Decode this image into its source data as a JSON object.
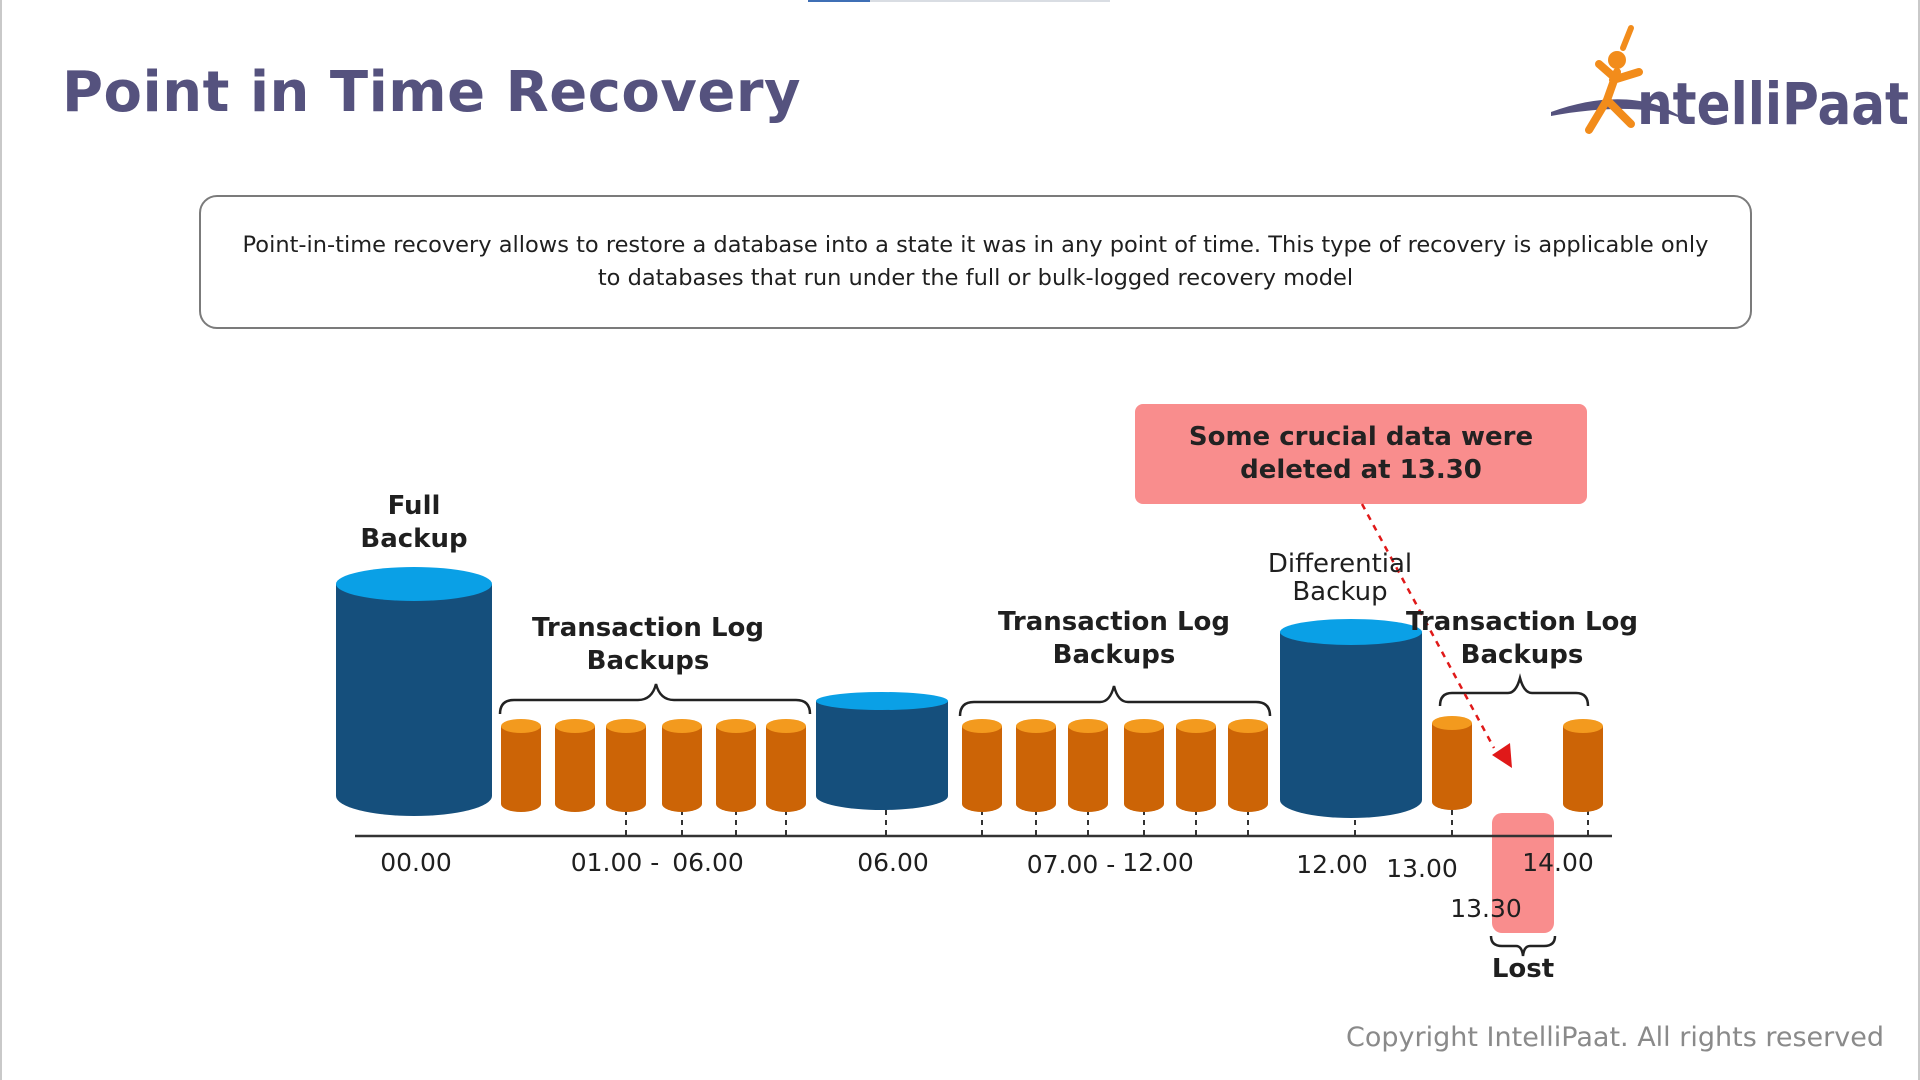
{
  "slide": {
    "title": "Point in Time Recovery",
    "logo": {
      "brand": "IntelliPaat",
      "brand_rest": "ntelliPaat",
      "colors": {
        "figure": "#f28c1b",
        "swoosh": "#55527e",
        "text": "#55527e"
      }
    },
    "description": "Point-in-time recovery allows to restore a database into a state it was in any point of time. This type of recovery is applicable only to databases that run under the full or bulk-logged recovery model",
    "callout": "Some crucial data were deleted at 13.30",
    "copyright": "Copyright IntelliPaat. All rights reserved"
  },
  "diagram": {
    "colors": {
      "full_body": "#154f7c",
      "full_top": "#0aa0e6",
      "log_body": "#cc6406",
      "log_top": "#f39a1e",
      "lost": "#f98d8d",
      "arrow": "#e01919"
    },
    "labels": {
      "full_backup": "Full Backup",
      "log_group_1": "Transaction Log Backups",
      "log_group_2": "Transaction Log Backups",
      "differential": "Differential Backup",
      "log_group_3": "Transaction Log Backups",
      "lost": "Lost"
    },
    "timeline": {
      "t_0000": "00.00",
      "t_0100": "01.00 -",
      "t_0600a": "06.00",
      "t_0600b": "06.00",
      "t_0700": "07.00 -",
      "t_1200a": "12.00",
      "t_1200b": "12.00",
      "t_1300": "13.00",
      "t_1330": "13.30",
      "t_1400": "14.00"
    }
  }
}
